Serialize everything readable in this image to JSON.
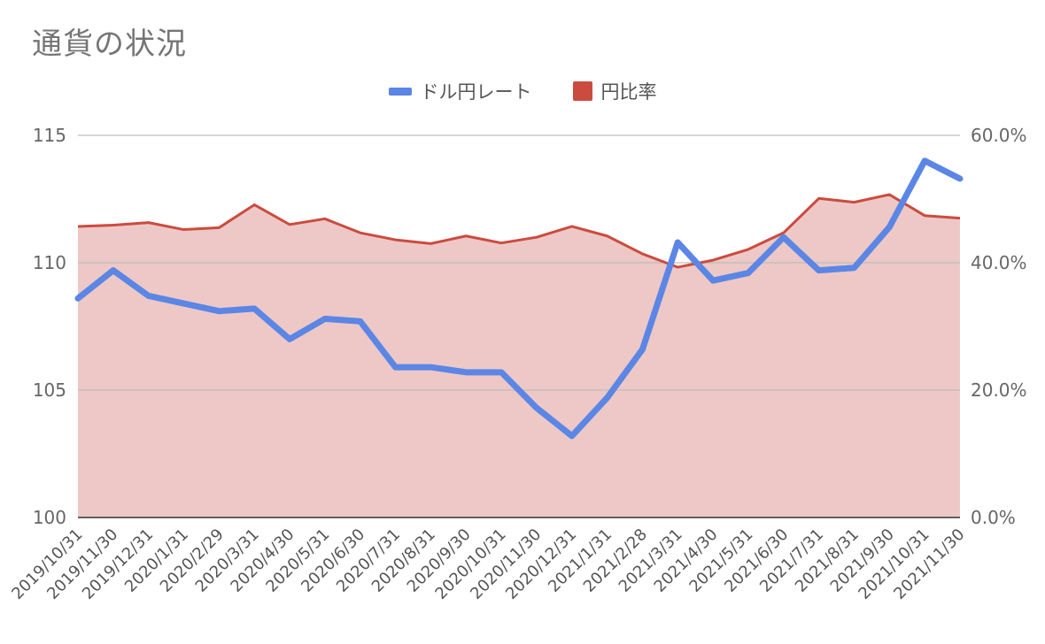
{
  "chart_data": {
    "type": "line",
    "title": "通貨の状況",
    "legend_position": "top",
    "grid": true,
    "categories": [
      "2019/10/31",
      "2019/11/30",
      "2019/12/31",
      "2020/1/31",
      "2020/2/29",
      "2020/3/31",
      "2020/4/30",
      "2020/5/31",
      "2020/6/30",
      "2020/7/31",
      "2020/8/31",
      "2020/9/30",
      "2020/10/31",
      "2020/11/30",
      "2020/12/31",
      "2021/1/31",
      "2021/2/28",
      "2021/3/31",
      "2021/4/30",
      "2021/5/31",
      "2021/6/30",
      "2021/7/31",
      "2021/8/31",
      "2021/9/30",
      "2021/10/31",
      "2021/11/30"
    ],
    "y_left": {
      "min": 100,
      "max": 115,
      "ticks": [
        100,
        105,
        110,
        115
      ],
      "tick_labels": [
        "100",
        "105",
        "110",
        "115"
      ]
    },
    "y_right": {
      "min": 0,
      "max": 0.6,
      "ticks": [
        0,
        0.2,
        0.4,
        0.6
      ],
      "tick_labels": [
        "0.0%",
        "20.0%",
        "40.0%",
        "60.0%"
      ]
    },
    "series": [
      {
        "name": "ドル円レート",
        "kind": "line",
        "axis": "left",
        "color": "#5B86E5",
        "values": [
          108.6,
          109.7,
          108.7,
          108.4,
          108.1,
          108.2,
          107.0,
          107.8,
          107.7,
          105.9,
          105.9,
          105.7,
          105.7,
          104.3,
          103.2,
          104.7,
          106.6,
          110.8,
          109.3,
          109.6,
          111.0,
          109.7,
          109.8,
          111.4,
          114.0,
          113.3
        ]
      },
      {
        "name": "円比率",
        "kind": "area",
        "axis": "right",
        "color": "#CC4B3F",
        "fill": "#EDC8C6",
        "values": [
          0.457,
          0.459,
          0.463,
          0.452,
          0.455,
          0.491,
          0.46,
          0.469,
          0.447,
          0.436,
          0.43,
          0.442,
          0.431,
          0.44,
          0.457,
          0.442,
          0.414,
          0.393,
          0.404,
          0.421,
          0.447,
          0.501,
          0.495,
          0.507,
          0.474,
          0.47
        ]
      }
    ]
  }
}
